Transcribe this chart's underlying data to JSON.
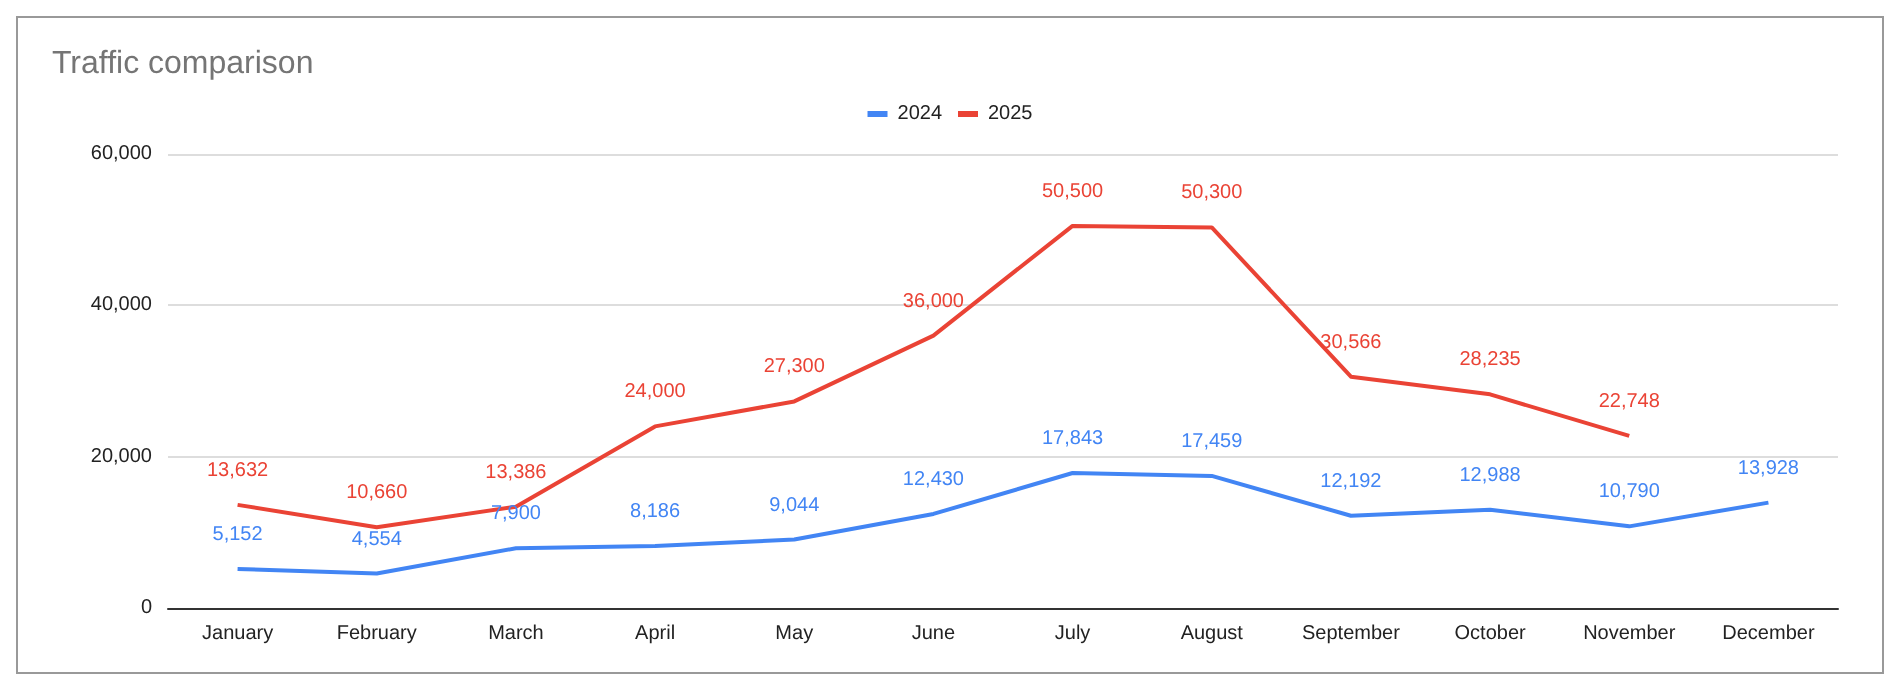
{
  "chart_data": {
    "type": "line",
    "title": "Traffic comparison",
    "categories": [
      "January",
      "February",
      "March",
      "April",
      "May",
      "June",
      "July",
      "August",
      "September",
      "October",
      "November",
      "December"
    ],
    "series": [
      {
        "name": "2024",
        "color": "#4285f4",
        "values": [
          5152,
          4554,
          7900,
          8186,
          9044,
          12430,
          17843,
          17459,
          12192,
          12988,
          10790,
          13928
        ],
        "value_labels": [
          "5,152",
          "4,554",
          "7,900",
          "8,186",
          "9,044",
          "12,430",
          "17,843",
          "17,459",
          "12,192",
          "12,988",
          "10,790",
          "13,928"
        ]
      },
      {
        "name": "2025",
        "color": "#ea4335",
        "values": [
          13632,
          10660,
          13386,
          24000,
          27300,
          36000,
          50500,
          50300,
          30566,
          28235,
          22748,
          null
        ],
        "value_labels": [
          "13,632",
          "10,660",
          "13,386",
          "24,000",
          "27,300",
          "36,000",
          "50,500",
          "50,300",
          "30,566",
          "28,235",
          "22,748",
          null
        ]
      }
    ],
    "ylim": [
      0,
      60000
    ],
    "yticks": [
      0,
      {
        "value": 20000,
        "label": "20,000"
      },
      {
        "value": 40000,
        "label": "40,000"
      },
      {
        "value": 60000,
        "label": "60,000"
      }
    ],
    "grid": "y",
    "legend": "top",
    "marker": "none",
    "line_style": "solid"
  }
}
